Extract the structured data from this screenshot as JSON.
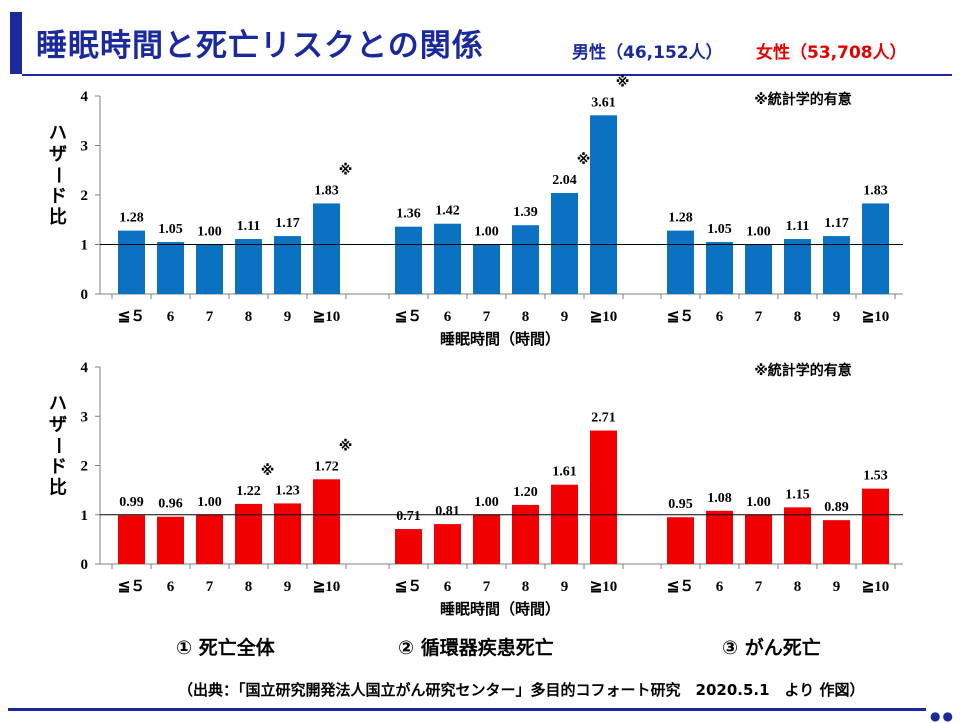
{
  "header": {
    "title": "睡眠時間と死亡リスクとの関係",
    "legend_male": "男性（46,152人）",
    "legend_female": "女性（53,708人）"
  },
  "colors": {
    "male": "#0a72c0",
    "female": "#f00000",
    "accent": "#1a2a9c"
  },
  "group_titles": [
    "① 死亡全体",
    "② 循環器疾患死亡",
    "③ がん死亡"
  ],
  "source": "（出典：「国立研究開発法人国立がん研究センター」多目的コフォート研究　2020.5.1　より 作図）",
  "chart_data": [
    {
      "type": "bar",
      "name": "male",
      "ylabel": "ハザード比",
      "xlabel": "睡眠時間（時間）",
      "ylim": [
        0,
        4
      ],
      "yticks": [
        "0",
        "1",
        "2",
        "3",
        "4"
      ],
      "reference_line": 1,
      "note": "※統計学的有意",
      "categories": [
        "≦５",
        "6",
        "7",
        "8",
        "9",
        "≧10"
      ],
      "groups": [
        {
          "name": "① 死亡全体",
          "values": [
            1.28,
            1.05,
            1.0,
            1.11,
            1.17,
            1.83
          ],
          "labels": [
            "1.28",
            "1.05",
            "1.00",
            "1.11",
            "1.17",
            "1.83"
          ],
          "significant": [
            false,
            false,
            false,
            false,
            false,
            true
          ]
        },
        {
          "name": "② 循環器疾患死亡",
          "values": [
            1.36,
            1.42,
            1.0,
            1.39,
            2.04,
            3.61
          ],
          "labels": [
            "1.36",
            "1.42",
            "1.00",
            "1.39",
            "2.04",
            "3.61"
          ],
          "significant": [
            false,
            false,
            false,
            false,
            true,
            true
          ]
        },
        {
          "name": "③ がん死亡",
          "values": [
            1.28,
            1.05,
            1.0,
            1.11,
            1.17,
            1.83
          ],
          "labels": [
            "1.28",
            "1.05",
            "1.00",
            "1.11",
            "1.17",
            "1.83"
          ],
          "significant": [
            false,
            false,
            false,
            false,
            false,
            false
          ]
        }
      ]
    },
    {
      "type": "bar",
      "name": "female",
      "ylabel": "ハザード比",
      "xlabel": "睡眠時間（時間）",
      "ylim": [
        0,
        4
      ],
      "yticks": [
        "0",
        "1",
        "2",
        "3",
        "4"
      ],
      "reference_line": 1,
      "note": "※統計学的有意",
      "categories": [
        "≦５",
        "6",
        "7",
        "8",
        "9",
        "≧10"
      ],
      "groups": [
        {
          "name": "① 死亡全体",
          "values": [
            0.99,
            0.96,
            1.0,
            1.22,
            1.23,
            1.72
          ],
          "labels": [
            "0.99",
            "0.96",
            "1.00",
            "1.22",
            "1.23",
            "1.72"
          ],
          "significant": [
            false,
            false,
            false,
            true,
            false,
            true
          ]
        },
        {
          "name": "② 循環器疾患死亡",
          "values": [
            0.71,
            0.81,
            1.0,
            1.2,
            1.61,
            2.71
          ],
          "labels": [
            "0.71",
            "0.81",
            "1.00",
            "1.20",
            "1.61",
            "2.71"
          ],
          "significant": [
            false,
            false,
            false,
            false,
            false,
            false
          ]
        },
        {
          "name": "③ がん死亡",
          "values": [
            0.95,
            1.08,
            1.0,
            1.15,
            0.89,
            1.53
          ],
          "labels": [
            "0.95",
            "1.08",
            "1.00",
            "1.15",
            "0.89",
            "1.53"
          ],
          "significant": [
            false,
            false,
            false,
            false,
            false,
            false
          ]
        }
      ]
    }
  ]
}
